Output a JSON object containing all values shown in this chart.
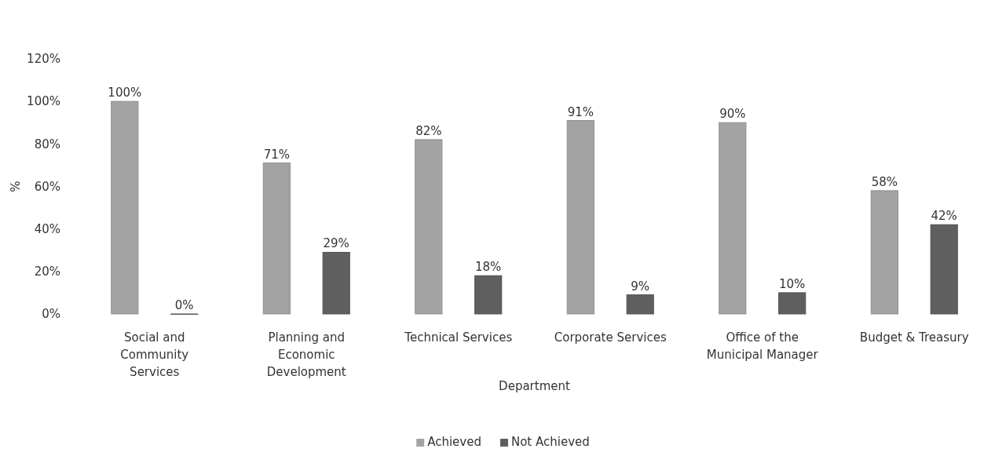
{
  "chart_data": {
    "type": "bar",
    "xlabel": "Department",
    "ylabel": "%",
    "categories": [
      "Social and Community Services",
      "Planning and Economic Development",
      "Technical Services",
      "Corporate Services",
      "Office of the Municipal Manager",
      "Budget & Treasury"
    ],
    "series": [
      {
        "name": "Achieved",
        "color": "#a3a3a3",
        "values": [
          100,
          71,
          82,
          91,
          90,
          58
        ],
        "value_labels": [
          "100%",
          "71%",
          "82%",
          "91%",
          "90%",
          "58%"
        ]
      },
      {
        "name": "Not Achieved",
        "color": "#5f5f5f",
        "values": [
          0,
          29,
          18,
          9,
          10,
          42
        ],
        "value_labels": [
          "0%",
          "29%",
          "18%",
          "9%",
          "10%",
          "42%"
        ]
      }
    ],
    "ylim": [
      0,
      120
    ],
    "yticks": [
      {
        "value": 0,
        "label": "0%"
      },
      {
        "value": 20,
        "label": "20%"
      },
      {
        "value": 40,
        "label": "40%"
      },
      {
        "value": 60,
        "label": "60%"
      },
      {
        "value": 80,
        "label": "80%"
      },
      {
        "value": 100,
        "label": "100%"
      },
      {
        "value": 120,
        "label": "120%"
      }
    ],
    "grid": false,
    "legend": "bottom"
  }
}
